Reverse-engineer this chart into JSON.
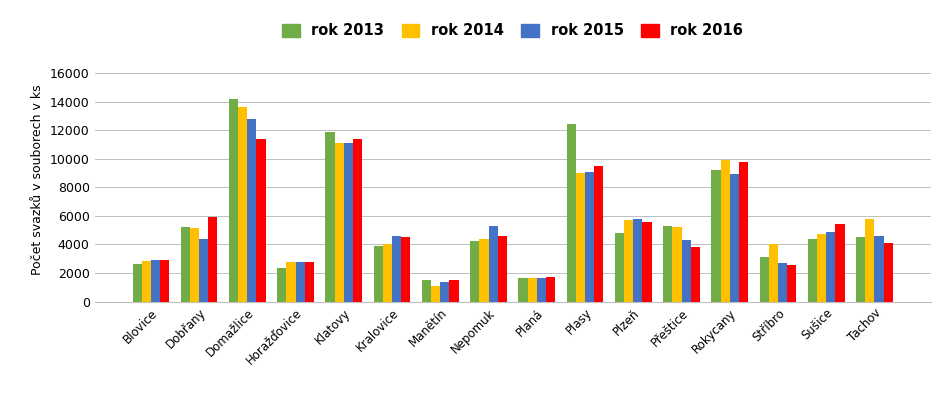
{
  "categories": [
    "Blovice",
    "Dobřany",
    "Domažlice",
    "Horažďovice",
    "Klatovy",
    "Kralovice",
    "Manětín",
    "Nepomuk",
    "Planá",
    "Plasy",
    "Plzeň",
    "Přeštice",
    "Rokycany",
    "Stříbro",
    "Sušice",
    "Tachov"
  ],
  "series": {
    "rok 2013": [
      2650,
      5200,
      14200,
      2350,
      11900,
      3900,
      1550,
      4250,
      1650,
      12400,
      4800,
      5300,
      9200,
      3100,
      4400,
      4550
    ],
    "rok 2014": [
      2850,
      5150,
      13600,
      2750,
      11100,
      4000,
      1100,
      4350,
      1650,
      9000,
      5700,
      5200,
      9900,
      4000,
      4750,
      5750
    ],
    "rok 2015": [
      2900,
      4400,
      12800,
      2750,
      11100,
      4600,
      1400,
      5300,
      1650,
      9050,
      5750,
      4300,
      8900,
      2700,
      4850,
      4600
    ],
    "rok 2016": [
      2950,
      5900,
      11350,
      2800,
      11350,
      4550,
      1500,
      4600,
      1750,
      9500,
      5550,
      3800,
      9750,
      2600,
      5450,
      4100
    ]
  },
  "colors": {
    "rok 2013": "#70AD47",
    "rok 2014": "#FFC000",
    "rok 2015": "#4472C4",
    "rok 2016": "#FF0000"
  },
  "ylabel": "Počet svazků v souborech v ks",
  "ylim": [
    0,
    17000
  ],
  "yticks": [
    0,
    2000,
    4000,
    6000,
    8000,
    10000,
    12000,
    14000,
    16000
  ],
  "legend_order": [
    "rok 2013",
    "rok 2014",
    "rok 2015",
    "rok 2016"
  ],
  "background_color": "#FFFFFF",
  "grid_color": "#BFBFBF",
  "bar_width": 0.19,
  "figwidth": 9.45,
  "figheight": 4.19,
  "fig_dpi": 100
}
